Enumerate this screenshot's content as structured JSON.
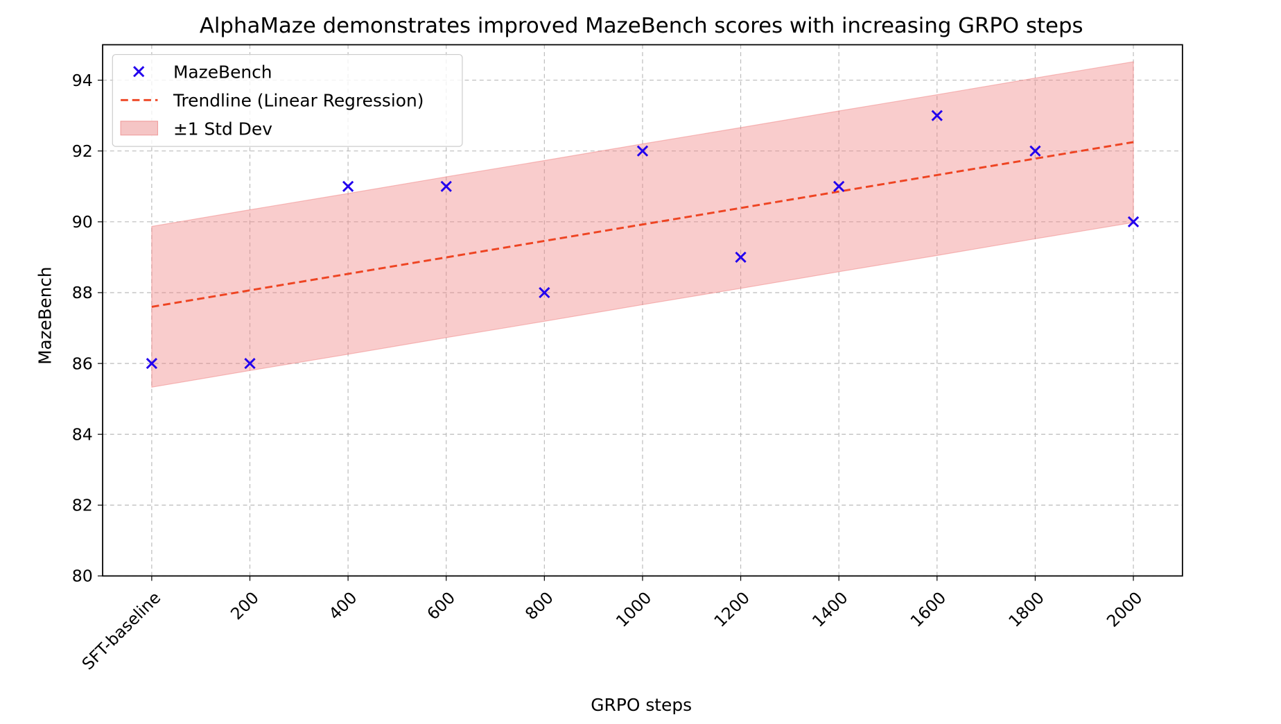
{
  "chart_data": {
    "type": "scatter",
    "title": "AlphaMaze demonstrates improved MazeBench scores with increasing GRPO steps",
    "xlabel": "GRPO steps",
    "ylabel": "MazeBench",
    "categories": [
      "SFT-baseline",
      "200",
      "400",
      "600",
      "800",
      "1000",
      "1200",
      "1400",
      "1600",
      "1800",
      "2000"
    ],
    "x": [
      0,
      200,
      400,
      600,
      800,
      1000,
      1200,
      1400,
      1600,
      1800,
      2000
    ],
    "series": [
      {
        "name": "MazeBench",
        "kind": "scatter",
        "marker": "x",
        "color": "#2200ee",
        "values": [
          86,
          86,
          91,
          91,
          88,
          92,
          89,
          91,
          93,
          92,
          90
        ]
      },
      {
        "name": "Trendline (Linear Regression)",
        "kind": "line",
        "style": "dashed",
        "color": "#ee4422",
        "values": [
          87.6,
          88.07,
          88.53,
          89.0,
          89.46,
          89.93,
          90.39,
          90.86,
          91.32,
          91.79,
          92.25
        ]
      },
      {
        "name": "±1 Std Dev",
        "kind": "band",
        "color": "#f08080",
        "std": 2.27
      }
    ],
    "yticks": [
      80,
      82,
      84,
      86,
      88,
      90,
      92,
      94
    ],
    "ylim": [
      80,
      95
    ],
    "xlim_index": [
      -0.5,
      10.5
    ],
    "grid": true,
    "legend_position": "top-left"
  }
}
